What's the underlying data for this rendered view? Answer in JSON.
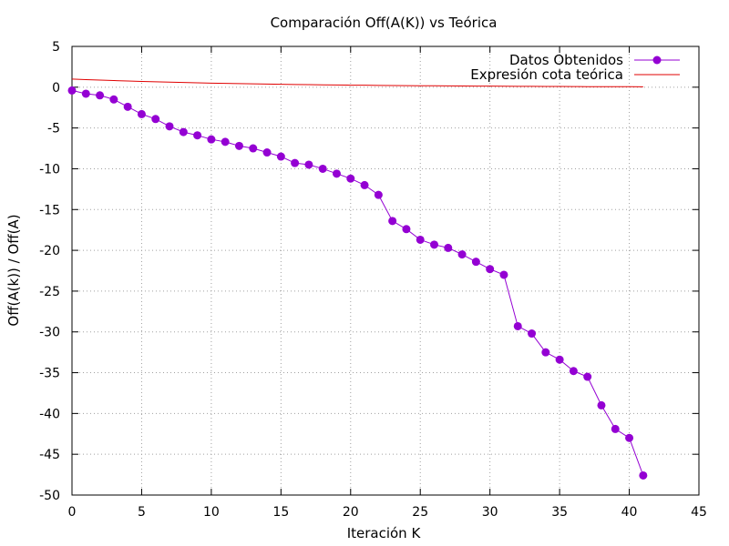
{
  "chart_data": {
    "type": "line",
    "title": "Comparación Off(A(K)) vs Teórica",
    "xlabel": "Iteración K",
    "ylabel": "Off(A(k)) / Off(A)",
    "xlim": [
      0,
      45
    ],
    "ylim": [
      -50,
      5
    ],
    "x_ticks": [
      0,
      5,
      10,
      15,
      20,
      25,
      30,
      35,
      40,
      45
    ],
    "y_ticks": [
      5,
      0,
      -5,
      -10,
      -15,
      -20,
      -25,
      -30,
      -35,
      -40,
      -45,
      -50
    ],
    "grid": true,
    "legend_position": "top-right",
    "series": [
      {
        "name": "Datos Obtenidos",
        "color": "#9400d3",
        "marker": "circle",
        "x": [
          0,
          1,
          2,
          3,
          4,
          5,
          6,
          7,
          8,
          9,
          10,
          11,
          12,
          13,
          14,
          15,
          16,
          17,
          18,
          19,
          20,
          21,
          22,
          23,
          24,
          25,
          26,
          27,
          28,
          29,
          30,
          31,
          32,
          33,
          34,
          35,
          36,
          37,
          38,
          39,
          40,
          41
        ],
        "y": [
          -0.4,
          -0.8,
          -1.0,
          -1.5,
          -2.4,
          -3.3,
          -3.9,
          -4.8,
          -5.5,
          -5.9,
          -6.4,
          -6.7,
          -7.2,
          -7.5,
          -8.0,
          -8.5,
          -9.3,
          -9.5,
          -10.0,
          -10.6,
          -11.2,
          -12.0,
          -13.2,
          -16.4,
          -17.4,
          -18.7,
          -19.3,
          -19.7,
          -20.5,
          -21.4,
          -22.3,
          -23.0,
          -29.3,
          -30.2,
          -32.5,
          -33.4,
          -34.8,
          -35.5,
          -39.0,
          -41.9,
          -43.0,
          -47.6
        ]
      },
      {
        "name": "Expresión cota teórica",
        "color": "#e00000",
        "marker": "none",
        "x": [
          0,
          1,
          2,
          3,
          4,
          5,
          6,
          7,
          8,
          9,
          10,
          11,
          12,
          13,
          14,
          15,
          16,
          17,
          18,
          19,
          20,
          21,
          22,
          23,
          24,
          25,
          26,
          27,
          28,
          29,
          30,
          31,
          32,
          33,
          34,
          35,
          36,
          37,
          38,
          39,
          40,
          41
        ],
        "y": [
          1.0,
          0.93,
          0.87,
          0.81,
          0.76,
          0.71,
          0.66,
          0.62,
          0.58,
          0.54,
          0.5,
          0.47,
          0.44,
          0.41,
          0.38,
          0.36,
          0.33,
          0.31,
          0.29,
          0.27,
          0.25,
          0.24,
          0.22,
          0.2,
          0.19,
          0.18,
          0.17,
          0.16,
          0.15,
          0.14,
          0.13,
          0.12,
          0.11,
          0.1,
          0.09,
          0.09,
          0.08,
          0.07,
          0.07,
          0.06,
          0.06,
          0.05
        ]
      }
    ]
  }
}
